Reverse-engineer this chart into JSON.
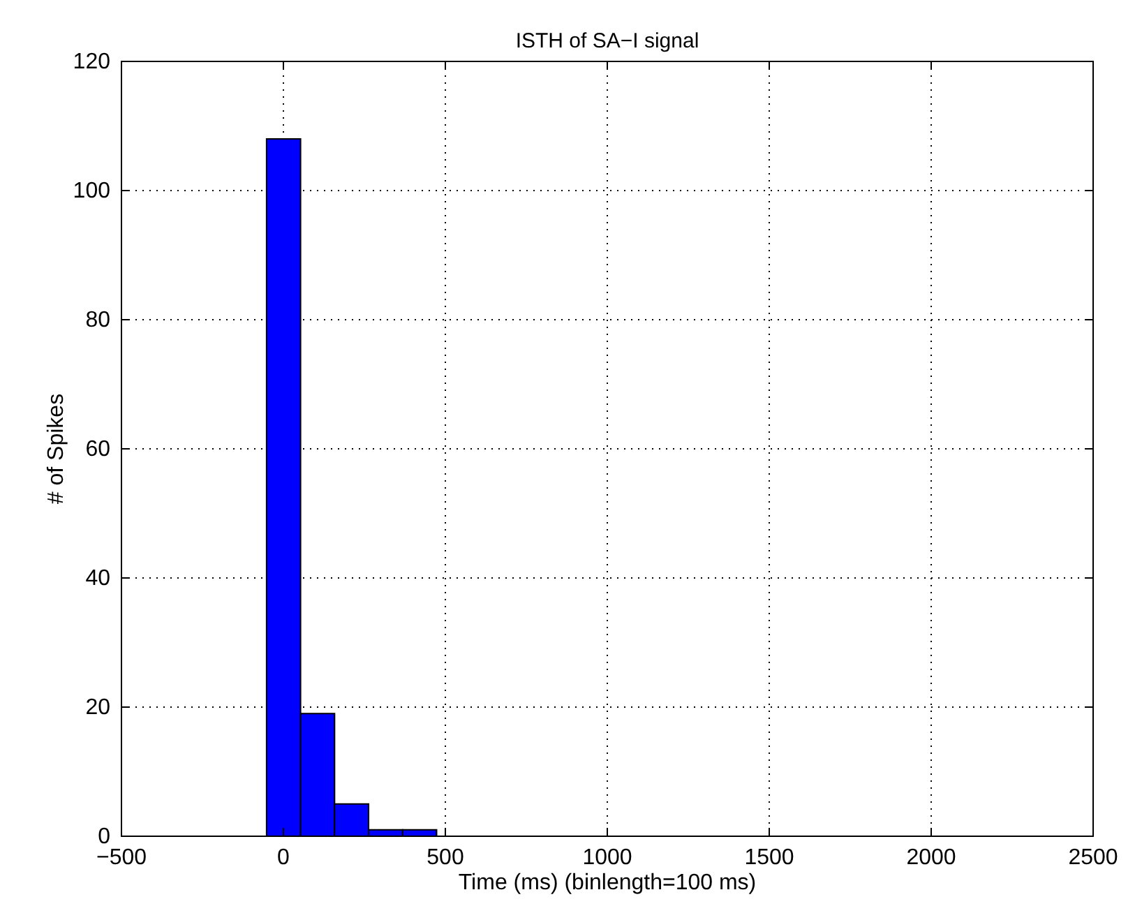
{
  "chart_data": {
    "type": "histogram",
    "title": "ISTH of SA−I signal",
    "xlabel": "Time (ms) (binlength=100 ms)",
    "ylabel": "# of Spikes",
    "bins": [
      -52,
      53,
      158,
      263,
      368,
      473
    ],
    "values": [
      108,
      19,
      5,
      1,
      1
    ],
    "color": "#0000ff",
    "xlim": [
      -500,
      2500
    ],
    "xticks": [
      {
        "value": -500,
        "label": "−500"
      },
      0,
      500,
      1000,
      1500,
      2000,
      2500
    ],
    "ylim": [
      0,
      120
    ],
    "yticks": [
      0,
      20,
      40,
      60,
      80,
      100,
      120
    ],
    "grid": true
  }
}
